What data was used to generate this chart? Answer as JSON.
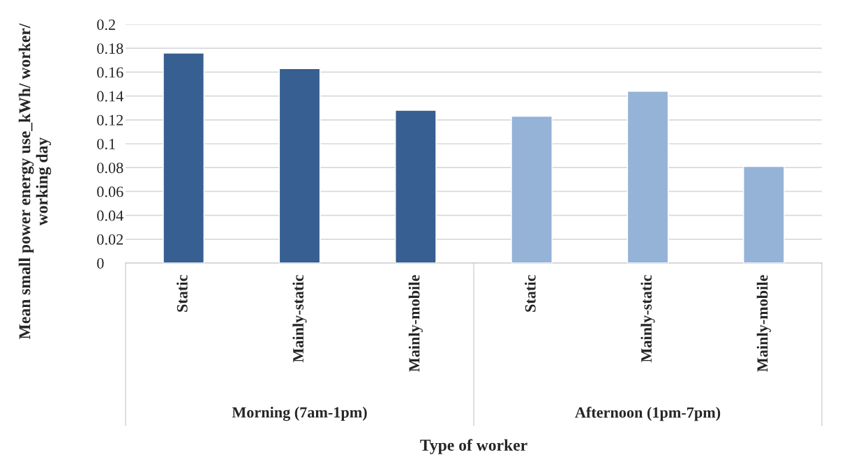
{
  "chart_data": {
    "type": "bar",
    "categories": [
      "Static",
      "Mainly-static",
      "Mainly-mobile",
      "Static",
      "Mainly-static",
      "Mainly-mobile"
    ],
    "series": [
      {
        "color": "#375f91",
        "values": [
          0.176,
          0.163,
          0.128,
          null,
          null,
          null
        ]
      },
      {
        "color": "#95b3d7",
        "values": [
          null,
          null,
          null,
          0.123,
          0.144,
          0.081
        ]
      }
    ],
    "annotations": [
      "Morning (7am-1pm)",
      "Afternoon (1pm-7pm)"
    ],
    "xlabel": "Type of worker",
    "ylabel": "Mean small power energy use_kWh/ worker/ working day",
    "ylim": [
      0,
      0.2
    ],
    "yticks": [
      0,
      0.02,
      0.04,
      0.06,
      0.08,
      0.1,
      0.12,
      0.14,
      0.16,
      0.18,
      0.2
    ],
    "grid": "y"
  }
}
